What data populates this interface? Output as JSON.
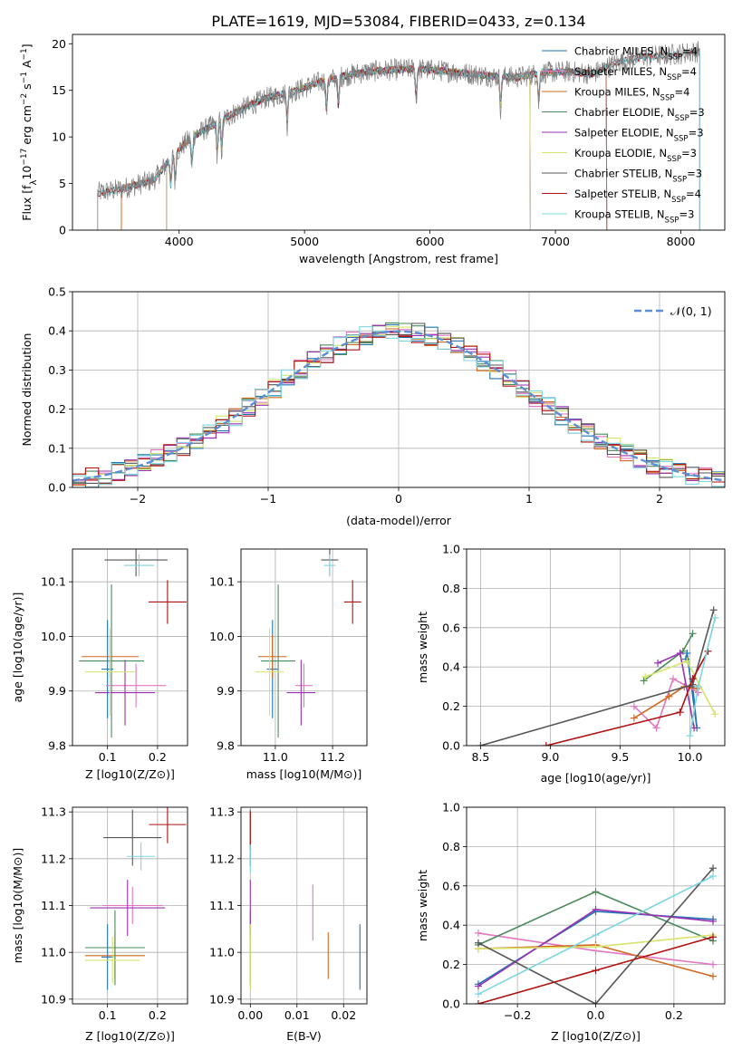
{
  "figure": {
    "title": "PLATE=1619, MJD=53084, FIBERID=0433, z=0.134",
    "colors": {
      "chabrier_miles": "#1f77b4",
      "salpeter_miles": "#e377c2",
      "kroupa_miles": "#d2691e",
      "chabrier_elodie": "#4b8b5b",
      "salpeter_elodie": "#9b30b4",
      "kroupa_elodie": "#d8e36a",
      "chabrier_stelib": "#555555",
      "salpeter_stelib": "#b01010",
      "kroupa_stelib": "#7fd6e0",
      "gaussian": "#5b8fd6"
    }
  },
  "chart_data": [
    {
      "id": "spectrum",
      "type": "line",
      "xlabel": "wavelength [Angstrom, rest frame]",
      "ylabel": "Flux [f_λ 10^-17 erg cm^-2 s^-1 A^-1]",
      "xlim": [
        3150,
        8350
      ],
      "ylim": [
        0,
        21
      ],
      "xticks": [
        "4000",
        "5000",
        "6000",
        "7000",
        "8000"
      ],
      "yticks": [
        "0",
        "5",
        "10",
        "15",
        "20"
      ],
      "legend_loc": "upper right",
      "legend": [
        {
          "label": "Chabrier MILES, N_SSP=4",
          "color": "chabrier_miles"
        },
        {
          "label": "Salpeter MILES, N_SSP=4",
          "color": "salpeter_miles"
        },
        {
          "label": "Kroupa MILES, N_SSP=4",
          "color": "kroupa_miles"
        },
        {
          "label": "Chabrier ELODIE, N_SSP=3",
          "color": "chabrier_elodie"
        },
        {
          "label": "Salpeter ELODIE, N_SSP=3",
          "color": "salpeter_elodie"
        },
        {
          "label": "Kroupa ELODIE, N_SSP=3",
          "color": "kroupa_elodie"
        },
        {
          "label": "Chabrier STELIB, N_SSP=3",
          "color": "chabrier_stelib"
        },
        {
          "label": "Salpeter STELIB, N_SSP=4",
          "color": "salpeter_stelib"
        },
        {
          "label": "Kroupa STELIB, N_SSP=3",
          "color": "kroupa_stelib"
        }
      ],
      "continuum": [
        [
          3350,
          4.0
        ],
        [
          3500,
          4.3
        ],
        [
          3650,
          4.8
        ],
        [
          3800,
          5.4
        ],
        [
          3950,
          8.0
        ],
        [
          4100,
          10.0
        ],
        [
          4300,
          11.5
        ],
        [
          4500,
          13.0
        ],
        [
          4700,
          14.2
        ],
        [
          4900,
          14.8
        ],
        [
          5100,
          15.8
        ],
        [
          5300,
          16.5
        ],
        [
          5500,
          17.0
        ],
        [
          5700,
          17.2
        ],
        [
          5900,
          17.3
        ],
        [
          6100,
          17.1
        ],
        [
          6300,
          16.8
        ],
        [
          6500,
          16.5
        ],
        [
          6700,
          16.4
        ],
        [
          6900,
          16.9
        ],
        [
          7100,
          17.0
        ],
        [
          7300,
          16.8
        ],
        [
          7500,
          18.0
        ],
        [
          7700,
          18.6
        ],
        [
          7900,
          18.8
        ],
        [
          8150,
          19.2
        ]
      ]
    },
    {
      "id": "residuals",
      "type": "step",
      "xlabel": "(data-model)/error",
      "ylabel": "Normed distribution",
      "xlim": [
        -2.5,
        2.5
      ],
      "ylim": [
        0,
        0.5
      ],
      "xticks": [
        "−2",
        "−1",
        "0",
        "1",
        "2"
      ],
      "yticks": [
        "0.0",
        "0.1",
        "0.2",
        "0.3",
        "0.4",
        "0.5"
      ],
      "bin_width": 0.1,
      "gaussian_label": "𝒩(0, 1)",
      "legend_loc": "upper right"
    },
    {
      "id": "age_vs_Z",
      "type": "errorbar",
      "xlabel": "Z [log10(Z/Z⊙)]",
      "ylabel": "age [log10(age/yr)]",
      "xlim": [
        0.03,
        0.26
      ],
      "ylim": [
        9.8,
        10.16
      ],
      "xticks": [
        "0.1",
        "0.2"
      ],
      "yticks": [
        "9.8",
        "9.9",
        "10.0",
        "10.1"
      ],
      "points": [
        {
          "c": "chabrier_miles",
          "x": 0.1,
          "xe": 0.012,
          "y": 9.94,
          "ye": 0.09
        },
        {
          "c": "salpeter_miles",
          "x": 0.157,
          "xe": 0.06,
          "y": 9.91,
          "ye": 0.04
        },
        {
          "c": "kroupa_miles",
          "x": 0.105,
          "xe": 0.057,
          "y": 9.963,
          "ye": 0.04
        },
        {
          "c": "chabrier_elodie",
          "x": 0.108,
          "xe": 0.065,
          "y": 9.955,
          "ye": 0.14
        },
        {
          "c": "salpeter_elodie",
          "x": 0.135,
          "xe": 0.06,
          "y": 9.897,
          "ye": 0.06
        },
        {
          "c": "kroupa_elodie",
          "x": 0.105,
          "xe": 0.05,
          "y": 9.935,
          "ye": 0.08
        },
        {
          "c": "chabrier_stelib",
          "x": 0.157,
          "xe": 0.063,
          "y": 10.14,
          "ye": 0.03
        },
        {
          "c": "salpeter_stelib",
          "x": 0.22,
          "xe": 0.038,
          "y": 10.063,
          "ye": 0.04
        },
        {
          "c": "kroupa_stelib",
          "x": 0.163,
          "xe": 0.03,
          "y": 10.13,
          "ye": 0.02
        }
      ]
    },
    {
      "id": "age_vs_mass",
      "type": "errorbar",
      "xlabel": "mass [log10(M/M⊙)]",
      "ylabel": "",
      "xlim": [
        10.88,
        11.32
      ],
      "ylim": [
        9.8,
        10.16
      ],
      "xticks": [
        "11.0",
        "11.2"
      ],
      "yticks": [
        "9.8",
        "9.9",
        "10.0",
        "10.1"
      ],
      "points": [
        {
          "c": "chabrier_miles",
          "x": 10.99,
          "xe": 0.02,
          "y": 9.94,
          "ye": 0.09
        },
        {
          "c": "salpeter_miles",
          "x": 11.1,
          "xe": 0.03,
          "y": 9.91,
          "ye": 0.04
        },
        {
          "c": "kroupa_miles",
          "x": 10.99,
          "xe": 0.05,
          "y": 9.963,
          "ye": 0.04
        },
        {
          "c": "chabrier_elodie",
          "x": 11.01,
          "xe": 0.06,
          "y": 9.955,
          "ye": 0.14
        },
        {
          "c": "salpeter_elodie",
          "x": 11.09,
          "xe": 0.05,
          "y": 9.897,
          "ye": 0.06
        },
        {
          "c": "kroupa_elodie",
          "x": 10.98,
          "xe": 0.05,
          "y": 9.935,
          "ye": 0.08
        },
        {
          "c": "chabrier_stelib",
          "x": 11.19,
          "xe": 0.03,
          "y": 10.14,
          "ye": 0.03
        },
        {
          "c": "salpeter_stelib",
          "x": 11.27,
          "xe": 0.03,
          "y": 10.063,
          "ye": 0.04
        },
        {
          "c": "kroupa_stelib",
          "x": 11.19,
          "xe": 0.02,
          "y": 10.13,
          "ye": 0.02
        }
      ]
    },
    {
      "id": "weight_vs_age",
      "type": "line",
      "xlabel": "age [log10(age/yr)]",
      "ylabel": "mass weight",
      "xlim": [
        8.4,
        10.25
      ],
      "ylim": [
        0,
        1
      ],
      "xticks": [
        "8.5",
        "9.0",
        "9.5",
        "10.0"
      ],
      "yticks": [
        "0.0",
        "0.2",
        "0.4",
        "0.6",
        "0.8",
        "1.0"
      ],
      "series": [
        {
          "c": "chabrier_miles",
          "points": [
            [
              9.97,
              0.44
            ],
            [
              9.98,
              0.47
            ],
            [
              10.05,
              0.09
            ],
            [
              10.02,
              0.3
            ]
          ]
        },
        {
          "c": "salpeter_miles",
          "points": [
            [
              9.6,
              0.2
            ],
            [
              9.76,
              0.09
            ],
            [
              9.88,
              0.34
            ],
            [
              10.06,
              0.27
            ]
          ]
        },
        {
          "c": "kroupa_miles",
          "points": [
            [
              9.6,
              0.14
            ],
            [
              9.85,
              0.25
            ],
            [
              9.96,
              0.3
            ],
            [
              10.05,
              0.29
            ]
          ]
        },
        {
          "c": "chabrier_elodie",
          "points": [
            [
              9.67,
              0.33
            ],
            [
              9.95,
              0.48
            ],
            [
              10.02,
              0.57
            ]
          ]
        },
        {
          "c": "salpeter_elodie",
          "points": [
            [
              9.77,
              0.42
            ],
            [
              9.93,
              0.47
            ],
            [
              10.03,
              0.09
            ]
          ]
        },
        {
          "c": "kroupa_elodie",
          "points": [
            [
              9.68,
              0.35
            ],
            [
              9.98,
              0.43
            ],
            [
              10.18,
              0.16
            ]
          ]
        },
        {
          "c": "chabrier_stelib",
          "points": [
            [
              8.5,
              0.0
            ],
            [
              10.02,
              0.31
            ],
            [
              10.17,
              0.69
            ]
          ]
        },
        {
          "c": "salpeter_stelib",
          "points": [
            [
              8.97,
              0.0
            ],
            [
              9.93,
              0.17
            ],
            [
              10.02,
              0.34
            ],
            [
              10.13,
              0.48
            ]
          ]
        },
        {
          "c": "kroupa_stelib",
          "points": [
            [
              10.0,
              0.05
            ],
            [
              10.06,
              0.3
            ],
            [
              10.18,
              0.65
            ]
          ]
        }
      ]
    },
    {
      "id": "mass_vs_Z",
      "type": "errorbar",
      "xlabel": "Z [log10(Z/Z⊙)]",
      "ylabel": "mass [log10(M/M⊙)]",
      "xlim": [
        0.03,
        0.26
      ],
      "ylim": [
        10.89,
        11.31
      ],
      "xticks": [
        "0.1",
        "0.2"
      ],
      "yticks": [
        "10.9",
        "11.0",
        "11.1",
        "11.2",
        "11.3"
      ],
      "points": [
        {
          "c": "chabrier_miles",
          "x": 0.1,
          "xe": 0.012,
          "y": 10.99,
          "ye": 0.07
        },
        {
          "c": "salpeter_miles",
          "x": 0.15,
          "xe": 0.06,
          "y": 11.1,
          "ye": 0.04
        },
        {
          "c": "kroupa_miles",
          "x": 0.115,
          "xe": 0.06,
          "y": 10.993,
          "ye": 0.05
        },
        {
          "c": "chabrier_elodie",
          "x": 0.115,
          "xe": 0.06,
          "y": 11.01,
          "ye": 0.08
        },
        {
          "c": "salpeter_elodie",
          "x": 0.14,
          "xe": 0.075,
          "y": 11.095,
          "ye": 0.06
        },
        {
          "c": "kroupa_elodie",
          "x": 0.11,
          "xe": 0.055,
          "y": 10.983,
          "ye": 0.05
        },
        {
          "c": "chabrier_stelib",
          "x": 0.15,
          "xe": 0.058,
          "y": 11.245,
          "ye": 0.06
        },
        {
          "c": "salpeter_stelib",
          "x": 0.22,
          "xe": 0.037,
          "y": 11.273,
          "ye": 0.04
        },
        {
          "c": "kroupa_stelib",
          "x": 0.167,
          "xe": 0.028,
          "y": 11.205,
          "ye": 0.03
        }
      ]
    },
    {
      "id": "mass_vs_ebv",
      "type": "errorbar",
      "xlabel": "E(B-V)",
      "ylabel": "",
      "xlim": [
        -0.002,
        0.025
      ],
      "ylim": [
        10.89,
        11.31
      ],
      "xticks": [
        "0.00",
        "0.01",
        "0.02"
      ],
      "yticks": [
        "10.9",
        "11.0",
        "11.1",
        "11.2",
        "11.3"
      ],
      "points": [
        {
          "c": "chabrier_miles",
          "x": 0.0235,
          "xe": 0,
          "y": 10.99,
          "ye": 0.07
        },
        {
          "c": "salpeter_miles",
          "x": 0.0134,
          "xe": 0,
          "y": 11.085,
          "ye": 0.06
        },
        {
          "c": "kroupa_miles",
          "x": 0.0167,
          "xe": 0,
          "y": 10.993,
          "ye": 0.05
        },
        {
          "c": "chabrier_elodie",
          "x": 0.0,
          "xe": 0,
          "y": 11.01,
          "ye": 0.08
        },
        {
          "c": "salpeter_elodie",
          "x": 0.0,
          "xe": 0,
          "y": 11.095,
          "ye": 0.06
        },
        {
          "c": "kroupa_elodie",
          "x": 0.0,
          "xe": 0,
          "y": 10.99,
          "ye": 0.07
        },
        {
          "c": "chabrier_stelib",
          "x": 0.0,
          "xe": 0,
          "y": 11.245,
          "ye": 0.06
        },
        {
          "c": "salpeter_stelib",
          "x": 0.0,
          "xe": 0,
          "y": 11.26,
          "ye": 0.04
        },
        {
          "c": "kroupa_stelib",
          "x": 0.0,
          "xe": 0,
          "y": 11.2,
          "ye": 0.03
        }
      ]
    },
    {
      "id": "weight_vs_Z",
      "type": "line",
      "xlabel": "Z [log10(Z/Z⊙)]",
      "ylabel": "mass weight",
      "xlim": [
        -0.33,
        0.33
      ],
      "ylim": [
        0,
        1
      ],
      "xticks": [
        "−0.2",
        "0.0",
        "0.2"
      ],
      "yticks": [
        "0.0",
        "0.2",
        "0.4",
        "0.6",
        "0.8",
        "1.0"
      ],
      "series": [
        {
          "c": "chabrier_miles",
          "points": [
            [
              -0.3,
              0.1
            ],
            [
              0.0,
              0.47
            ],
            [
              0.3,
              0.43
            ]
          ]
        },
        {
          "c": "salpeter_miles",
          "points": [
            [
              -0.3,
              0.36
            ],
            [
              0.0,
              0.27
            ],
            [
              0.3,
              0.2
            ]
          ]
        },
        {
          "c": "kroupa_miles",
          "points": [
            [
              -0.3,
              0.28
            ],
            [
              0.0,
              0.3
            ],
            [
              0.3,
              0.14
            ]
          ]
        },
        {
          "c": "chabrier_elodie",
          "points": [
            [
              -0.3,
              0.3
            ],
            [
              0.0,
              0.57
            ],
            [
              0.3,
              0.32
            ]
          ]
        },
        {
          "c": "salpeter_elodie",
          "points": [
            [
              -0.3,
              0.09
            ],
            [
              0.0,
              0.48
            ],
            [
              0.3,
              0.42
            ]
          ]
        },
        {
          "c": "kroupa_elodie",
          "points": [
            [
              -0.3,
              0.28
            ],
            [
              0.0,
              0.29
            ],
            [
              0.3,
              0.35
            ]
          ]
        },
        {
          "c": "chabrier_stelib",
          "points": [
            [
              -0.3,
              0.31
            ],
            [
              0.0,
              0.0
            ],
            [
              0.3,
              0.69
            ]
          ]
        },
        {
          "c": "salpeter_stelib",
          "points": [
            [
              -0.3,
              0.0
            ],
            [
              0.0,
              0.17
            ],
            [
              0.3,
              0.34
            ]
          ]
        },
        {
          "c": "kroupa_stelib",
          "points": [
            [
              -0.3,
              0.05
            ],
            [
              0.0,
              0.35
            ],
            [
              0.3,
              0.65
            ]
          ]
        }
      ]
    }
  ]
}
